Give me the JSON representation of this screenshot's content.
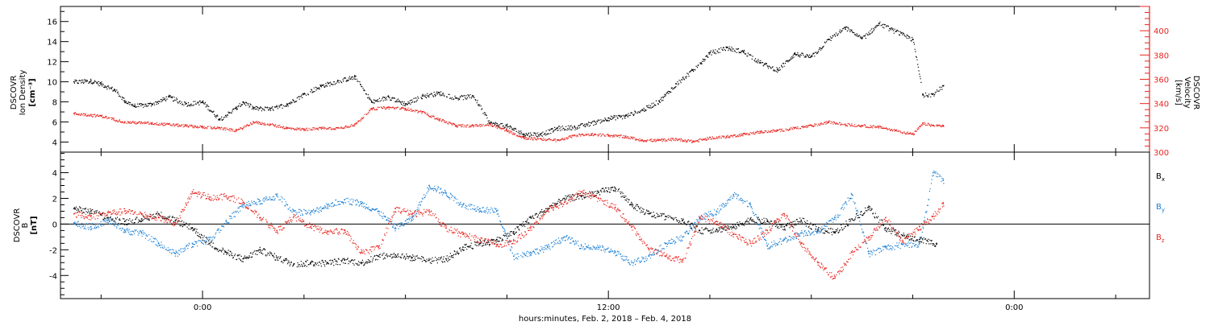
{
  "chart_data": [
    {
      "type": "scatter",
      "ylabel_lines": [
        "DSCOVR",
        "Ion Density"
      ],
      "ylabel_unit": "[cm⁻³]",
      "y2label_lines": [
        "DSCOVR",
        "Velocity"
      ],
      "y2label_unit": "[km/s]",
      "ylim": [
        3,
        17.5
      ],
      "yticks": [
        4,
        6,
        8,
        10,
        12,
        14,
        16
      ],
      "y2lim": [
        300,
        420
      ],
      "y2ticks": [
        300,
        320,
        340,
        360,
        380,
        400
      ],
      "colors": {
        "density": "#000000",
        "velocity": "#e8251f"
      },
      "series": [
        {
          "name": "",
          "axis": "left",
          "color": "#000000",
          "x": [
            -3.8,
            -3.3,
            -3.0,
            -2.6,
            -2.3,
            -2.0,
            -1.5,
            -1.0,
            -0.5,
            0,
            0.5,
            1.0,
            1.2,
            1.5,
            2.0,
            2.5,
            3.0,
            3.5,
            4.0,
            4.5,
            5.0,
            5.5,
            6.0,
            6.5,
            7.0,
            7.5,
            8.0,
            8.5,
            9.0,
            9.5,
            10.0,
            10.5,
            11.0,
            11.5,
            12.0,
            12.5,
            13.0,
            13.5,
            14.0,
            14.5,
            15.0,
            15.5,
            16.0,
            16.5,
            17.0,
            17.5,
            18.0,
            18.5,
            19.0,
            19.5,
            20.0,
            20.5,
            21.0,
            21.3,
            21.6,
            21.9
          ],
          "y": [
            10.0,
            10.1,
            9.8,
            9.2,
            8.1,
            7.6,
            7.8,
            8.5,
            7.8,
            8.0,
            6.3,
            7.4,
            8.0,
            7.4,
            7.3,
            7.8,
            8.8,
            9.6,
            10.1,
            10.5,
            8.0,
            8.5,
            7.8,
            8.6,
            8.9,
            8.4,
            8.6,
            5.9,
            5.6,
            4.8,
            4.8,
            5.4,
            5.5,
            5.9,
            6.4,
            6.6,
            7.2,
            8.1,
            9.8,
            11.2,
            12.9,
            13.4,
            13.0,
            11.9,
            11.2,
            12.8,
            12.5,
            14.2,
            15.4,
            14.3,
            15.8,
            15.0,
            14.2,
            8.7,
            8.8,
            9.6
          ]
        },
        {
          "name": "",
          "axis": "right",
          "color": "#e8251f",
          "x": [
            -3.8,
            -3.0,
            -2.3,
            -1.5,
            -1.0,
            -0.5,
            0,
            0.5,
            1.0,
            1.5,
            2.0,
            2.5,
            3.0,
            3.5,
            4.0,
            4.5,
            5.0,
            5.5,
            6.0,
            6.5,
            7.0,
            7.5,
            8.0,
            8.5,
            9.0,
            9.5,
            10.0,
            10.5,
            11.0,
            11.5,
            12.0,
            12.5,
            13.0,
            13.5,
            14.0,
            14.5,
            15.0,
            15.5,
            16.0,
            16.5,
            17.0,
            17.5,
            18.0,
            18.5,
            19.0,
            19.5,
            20.0,
            20.5,
            21.0,
            21.3,
            21.6,
            21.9
          ],
          "y": [
            332,
            330,
            325,
            324,
            323,
            322,
            321,
            320,
            318,
            325,
            323,
            320,
            319,
            320,
            320,
            323,
            336,
            337,
            336,
            333,
            327,
            322,
            322,
            323,
            318,
            312,
            311,
            310,
            314,
            315,
            314,
            313,
            310,
            310,
            311,
            309,
            312,
            313,
            315,
            317,
            318,
            320,
            322,
            325,
            323,
            322,
            321,
            318,
            315,
            324,
            322,
            322
          ]
        }
      ]
    },
    {
      "type": "scatter",
      "ylabel_lines": [
        "DSCOVR",
        "B"
      ],
      "ylabel_unit": "[nT]",
      "ylim": [
        -5.8,
        5.6
      ],
      "yticks": [
        -4,
        -2,
        0,
        2,
        4
      ],
      "zero_line": true,
      "legend_position": "right",
      "legend": [
        {
          "label": "B",
          "sub": "x",
          "color": "#000000"
        },
        {
          "label": "B",
          "sub": "y",
          "color": "#1a7fd4"
        },
        {
          "label": "B",
          "sub": "z",
          "color": "#e8251f"
        }
      ],
      "series": [
        {
          "name": "Bx",
          "color": "#000000",
          "x": [
            -3.8,
            -3.3,
            -2.8,
            -2.3,
            -1.8,
            -1.3,
            -0.8,
            -0.3,
            0.2,
            0.7,
            1.2,
            1.7,
            2.2,
            2.7,
            3.2,
            3.7,
            4.2,
            4.7,
            5.2,
            5.7,
            6.2,
            6.7,
            7.2,
            7.7,
            8.2,
            8.7,
            9.2,
            9.7,
            10.2,
            10.7,
            11.2,
            11.7,
            12.2,
            12.7,
            13.2,
            13.7,
            14.2,
            14.7,
            15.2,
            15.7,
            16.2,
            16.7,
            17.2,
            17.7,
            18.2,
            18.7,
            19.2,
            19.7,
            20.2,
            20.7,
            21.2,
            21.7
          ],
          "y": [
            1.2,
            1.0,
            0.5,
            0.2,
            0.4,
            0.8,
            0.3,
            -0.3,
            -1.5,
            -2.2,
            -2.7,
            -2.0,
            -2.6,
            -3.1,
            -3.0,
            -3.0,
            -2.8,
            -3.0,
            -2.5,
            -2.4,
            -2.6,
            -2.8,
            -2.7,
            -1.8,
            -1.5,
            -1.2,
            -0.6,
            0.5,
            1.2,
            2.0,
            2.2,
            2.5,
            2.8,
            1.5,
            0.8,
            0.6,
            0.3,
            -0.5,
            -0.4,
            -0.2,
            0.4,
            0.2,
            -0.2,
            0.3,
            -0.4,
            -0.6,
            0.4,
            1.3,
            -0.3,
            -0.9,
            -1.2,
            -1.5
          ]
        },
        {
          "name": "By",
          "color": "#1a7fd4",
          "x": [
            -3.8,
            -3.3,
            -2.8,
            -2.3,
            -1.8,
            -1.3,
            -0.8,
            -0.3,
            0.2,
            0.7,
            1.2,
            1.7,
            2.2,
            2.7,
            3.2,
            3.7,
            4.2,
            4.7,
            5.2,
            5.7,
            6.2,
            6.7,
            7.2,
            7.7,
            8.2,
            8.7,
            9.2,
            9.7,
            10.2,
            10.7,
            11.2,
            11.7,
            12.2,
            12.7,
            13.2,
            13.7,
            14.2,
            14.7,
            15.2,
            15.7,
            16.2,
            16.7,
            17.2,
            17.7,
            18.2,
            18.7,
            19.2,
            19.7,
            20.2,
            20.7,
            21.2,
            21.6,
            21.9
          ],
          "y": [
            0.1,
            -0.2,
            0.3,
            -0.5,
            -0.7,
            -1.5,
            -2.3,
            -1.5,
            -1.2,
            0.2,
            1.5,
            1.8,
            2.2,
            1.0,
            0.9,
            1.5,
            1.9,
            1.6,
            1.0,
            -0.3,
            0.5,
            3.0,
            2.4,
            1.5,
            1.2,
            1.0,
            -2.5,
            -2.2,
            -1.8,
            -1.0,
            -1.7,
            -1.8,
            -2.2,
            -3.0,
            -2.5,
            -1.5,
            -1.0,
            0.5,
            1.0,
            2.3,
            1.5,
            -1.7,
            -1.2,
            -0.7,
            -0.5,
            0.5,
            2.3,
            -2.3,
            -1.8,
            -1.6,
            -1.5,
            4.0,
            3.4
          ]
        },
        {
          "name": "Bz",
          "color": "#e8251f",
          "x": [
            -3.8,
            -3.3,
            -2.8,
            -2.3,
            -1.8,
            -1.3,
            -0.8,
            -0.3,
            0.2,
            0.7,
            1.2,
            1.7,
            2.2,
            2.7,
            3.2,
            3.7,
            4.2,
            4.7,
            5.2,
            5.7,
            6.2,
            6.7,
            7.2,
            7.7,
            8.2,
            8.7,
            9.2,
            9.7,
            10.2,
            10.7,
            11.2,
            11.7,
            12.2,
            12.7,
            13.2,
            13.7,
            14.2,
            14.7,
            15.2,
            15.7,
            16.2,
            16.7,
            17.2,
            17.7,
            18.2,
            18.7,
            19.2,
            19.7,
            20.2,
            20.7,
            21.2,
            21.6,
            21.9
          ],
          "y": [
            0.8,
            0.6,
            0.9,
            1.0,
            0.8,
            0.5,
            0.1,
            2.5,
            2.1,
            2.2,
            1.7,
            0.5,
            -0.5,
            0.6,
            -0.2,
            -0.6,
            -0.5,
            -2.2,
            -1.8,
            1.2,
            0.8,
            1.0,
            -0.3,
            -0.8,
            -1.2,
            -1.6,
            -1.3,
            -0.3,
            1.2,
            1.7,
            2.5,
            2.0,
            1.3,
            -0.2,
            -2.0,
            -2.5,
            -2.8,
            0.5,
            0.2,
            -0.8,
            -1.5,
            -0.5,
            0.8,
            -1.5,
            -3.0,
            -4.2,
            -2.2,
            -1.0,
            0.5,
            -1.4,
            -0.2,
            0.6,
            1.6
          ]
        }
      ]
    }
  ],
  "x_axis": {
    "range": [
      -4.2,
      28
    ],
    "ticks": [
      {
        "x": 0,
        "label": "0:00"
      },
      {
        "x": 12,
        "label": "12:00"
      },
      {
        "x": 24,
        "label": "0:00"
      }
    ],
    "title": "hours:minutes, Feb.  2, 2018 – Feb.  4, 2018"
  }
}
